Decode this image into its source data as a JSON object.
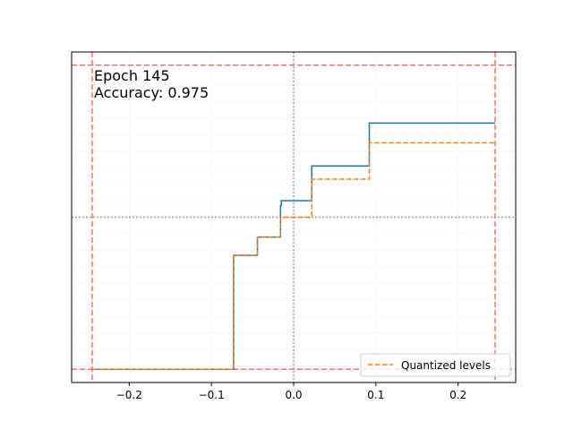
{
  "chart_data": {
    "type": "line",
    "xlim": [
      -0.27,
      0.27
    ],
    "ylim": [
      -1.0,
      1.0
    ],
    "x_ticks": [
      -0.2,
      -0.1,
      0.0,
      0.1,
      0.2
    ],
    "x_tick_labels": [
      "−0.2",
      "−0.1",
      "0.0",
      "0.1",
      "0.2"
    ],
    "y_ticks_shown": false,
    "grid": true,
    "annotations": [
      "Epoch 145",
      "Accuracy: 0.975"
    ],
    "reference_lines": {
      "bounds_vertical": [
        -0.245,
        0.245
      ],
      "bounds_horizontal": [
        -0.92,
        0.92
      ],
      "zero_lines": [
        0,
        0
      ],
      "bounds_color": "#ff6b6b",
      "zero_color": "#999999"
    },
    "series": [
      {
        "style": "solid",
        "color": "#1f77b4",
        "x": [
          -0.245,
          -0.073,
          -0.073,
          -0.044,
          -0.044,
          -0.016,
          -0.016,
          -0.015,
          -0.015,
          0.022,
          0.022,
          0.092,
          0.092,
          0.245
        ],
        "y": [
          -0.92,
          -0.92,
          -0.23,
          -0.23,
          -0.12,
          -0.12,
          0.07,
          0.07,
          0.1,
          0.1,
          0.31,
          0.31,
          0.57,
          0.57
        ]
      },
      {
        "name": "Quantized levels",
        "style": "dashed",
        "color": "#ff7f0e",
        "x": [
          -0.245,
          -0.073,
          -0.073,
          -0.044,
          -0.044,
          -0.016,
          -0.016,
          0.022,
          0.022,
          0.092,
          0.092,
          0.245
        ],
        "y": [
          -0.92,
          -0.92,
          -0.23,
          -0.23,
          -0.12,
          -0.12,
          0.0,
          0.0,
          0.23,
          0.23,
          0.45,
          0.45
        ]
      }
    ],
    "legend": {
      "placement": "lower-right",
      "entries": [
        "Quantized levels"
      ]
    }
  }
}
